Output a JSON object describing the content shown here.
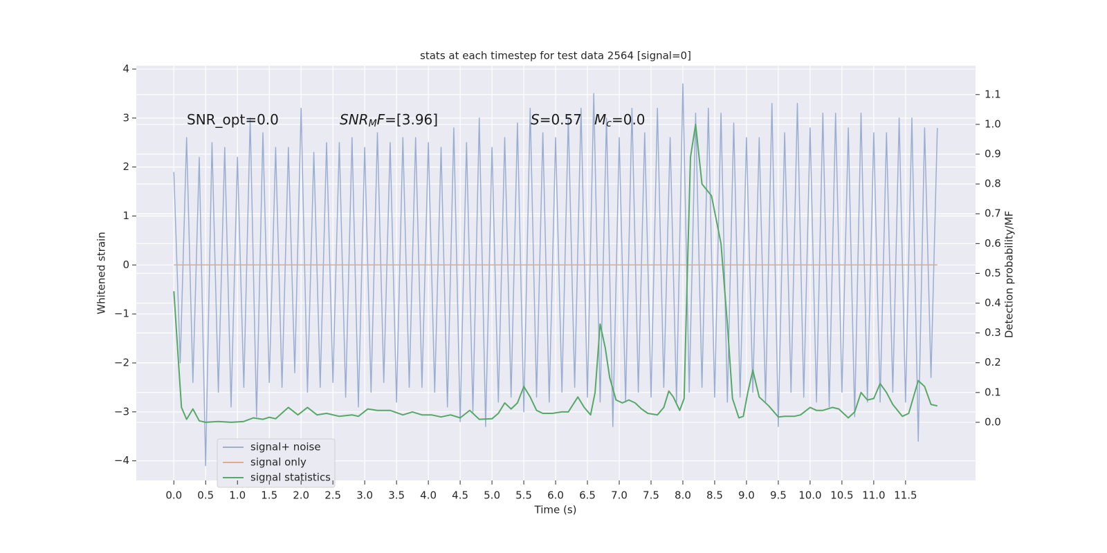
{
  "chart_data": {
    "type": "line",
    "title": "stats at each timestep for test data 2564 [signal=0]",
    "xlabel": "Time (s)",
    "ylabel": "Whitened strain",
    "y2label": "Detection probability/MF",
    "annotations": [
      [
        "SNR_opt=0.0"
      ],
      [
        "SNR",
        "M",
        "F",
        "=[3.96]"
      ],
      [
        "S",
        "=0.57"
      ],
      [
        "M",
        "c",
        "=0.0"
      ]
    ],
    "grid": true,
    "legend": "lower left",
    "xlim": [
      -0.59,
      12.6
    ],
    "xticks": [
      {
        "value": 0,
        "label": "0.0"
      },
      {
        "value": 0.5,
        "label": "0.5"
      },
      {
        "value": 1,
        "label": "1.0"
      },
      {
        "value": 1.5,
        "label": "1.5"
      },
      {
        "value": 2,
        "label": "2.0"
      },
      {
        "value": 2.5,
        "label": "2.5"
      },
      {
        "value": 3,
        "label": "3.0"
      },
      {
        "value": 3.5,
        "label": "3.5"
      },
      {
        "value": 4,
        "label": "4.0"
      },
      {
        "value": 4.5,
        "label": "4.5"
      },
      {
        "value": 5,
        "label": "5.0"
      },
      {
        "value": 5.5,
        "label": "5.5"
      },
      {
        "value": 6,
        "label": "6.0"
      },
      {
        "value": 6.5,
        "label": "6.5"
      },
      {
        "value": 7,
        "label": "7.0"
      },
      {
        "value": 7.5,
        "label": "7.5"
      },
      {
        "value": 8,
        "label": "8.0"
      },
      {
        "value": 8.5,
        "label": "8.5"
      },
      {
        "value": 9,
        "label": "9.0"
      },
      {
        "value": 9.5,
        "label": "9.5"
      },
      {
        "value": 10,
        "label": "10.0"
      },
      {
        "value": 10.5,
        "label": "10.5"
      },
      {
        "value": 11,
        "label": "11.0"
      },
      {
        "value": 11.5,
        "label": "11.5"
      }
    ],
    "ylim": [
      -4.4,
      4.07
    ],
    "yticks": [
      {
        "value": -4,
        "label": "−4"
      },
      {
        "value": -3,
        "label": "−3"
      },
      {
        "value": -2,
        "label": "−2"
      },
      {
        "value": -1,
        "label": "−1"
      },
      0,
      1,
      2,
      3,
      4
    ],
    "y2lim": [
      -0.195,
      1.197
    ],
    "y2ticks": [
      {
        "value": 0,
        "label": "0.0"
      },
      {
        "value": 0.1,
        "label": "0.1"
      },
      {
        "value": 0.2,
        "label": "0.2"
      },
      {
        "value": 0.3,
        "label": "0.3"
      },
      {
        "value": 0.4,
        "label": "0.4"
      },
      {
        "value": 0.5,
        "label": "0.5"
      },
      {
        "value": 0.6,
        "label": "0.6"
      },
      {
        "value": 0.7,
        "label": "0.7"
      },
      {
        "value": 0.8,
        "label": "0.8"
      },
      {
        "value": 0.9,
        "label": "0.9"
      },
      {
        "value": 1,
        "label": "1.0"
      },
      {
        "value": 1.1,
        "label": "1.1"
      }
    ],
    "series": [
      {
        "name": "signal+ noise",
        "color": "#9aaed2",
        "x": [
          0,
          0.1,
          0.2,
          0.3,
          0.4,
          0.5,
          0.6,
          0.7,
          0.8,
          0.9,
          1,
          1.1,
          1.2,
          1.3,
          1.4,
          1.5,
          1.6,
          1.7,
          1.8,
          1.9,
          2,
          2.1,
          2.2,
          2.3,
          2.4,
          2.5,
          2.6,
          2.7,
          2.8,
          2.9,
          3,
          3.1,
          3.2,
          3.3,
          3.4,
          3.5,
          3.6,
          3.7,
          3.8,
          3.9,
          4,
          4.1,
          4.2,
          4.3,
          4.4,
          4.5,
          4.6,
          4.7,
          4.8,
          4.9,
          5,
          5.1,
          5.2,
          5.3,
          5.4,
          5.5,
          5.6,
          5.7,
          5.8,
          5.9,
          6,
          6.1,
          6.2,
          6.3,
          6.4,
          6.5,
          6.6,
          6.7,
          6.8,
          6.9,
          7,
          7.1,
          7.2,
          7.3,
          7.4,
          7.5,
          7.6,
          7.7,
          7.8,
          7.9,
          8,
          8.1,
          8.2,
          8.3,
          8.4,
          8.5,
          8.6,
          8.7,
          8.8,
          8.9,
          9,
          9.1,
          9.2,
          9.3,
          9.4,
          9.5,
          9.6,
          9.7,
          9.8,
          9.9,
          10,
          10.1,
          10.2,
          10.3,
          10.4,
          10.5,
          10.6,
          10.7,
          10.8,
          10.9,
          11,
          11.1,
          11.2,
          11.3,
          11.4,
          11.5,
          11.6,
          11.7,
          11.8,
          11.9,
          12
        ],
        "values": [
          1.9,
          -2.0,
          2.6,
          -2.4,
          2.2,
          -4.1,
          2.5,
          -2.6,
          2.4,
          -2.9,
          2.2,
          -2.5,
          3.0,
          -3.1,
          2.7,
          -2.4,
          2.4,
          -2.5,
          2.4,
          -2.2,
          3.2,
          -2.6,
          2.3,
          -2.5,
          2.5,
          -2.4,
          2.5,
          -2.7,
          2.6,
          -2.9,
          2.4,
          -2.6,
          2.7,
          -2.4,
          2.5,
          -2.8,
          2.6,
          -2.5,
          2.6,
          -2.5,
          2.5,
          -2.6,
          2.4,
          -2.9,
          2.8,
          -3.2,
          2.5,
          -3.0,
          3.0,
          -3.3,
          2.4,
          -2.8,
          2.6,
          -2.7,
          2.9,
          -3.0,
          3.2,
          -2.7,
          2.7,
          -2.8,
          2.6,
          -2.6,
          3.0,
          -2.5,
          3.2,
          -2.7,
          3.5,
          -2.8,
          3.0,
          -3.3,
          2.6,
          -2.8,
          3.2,
          -2.6,
          2.7,
          -2.7,
          3.2,
          -2.5,
          2.6,
          -2.8,
          3.7,
          -2.6,
          3.1,
          -2.5,
          3.2,
          -2.7,
          3.1,
          -2.8,
          2.9,
          -2.7,
          2.6,
          -2.6,
          2.6,
          -2.8,
          3.3,
          -3.3,
          2.7,
          -2.6,
          3.3,
          -2.7,
          2.8,
          -2.8,
          3.1,
          -2.9,
          3.1,
          -2.6,
          2.8,
          -3.1,
          3.1,
          -2.8,
          2.7,
          -2.8,
          2.7,
          -2.6,
          3.0,
          -2.8,
          3.0,
          -3.6,
          2.8,
          -2.3,
          2.8
        ]
      },
      {
        "name": "signal only",
        "color": "#e6a88a",
        "x": [
          0,
          12
        ],
        "values": [
          0,
          0
        ]
      },
      {
        "name": "signal statistics",
        "color": "#55a868",
        "axis": "y2",
        "x": [
          0,
          0.08,
          0.12,
          0.2,
          0.3,
          0.4,
          0.5,
          0.7,
          0.9,
          1.1,
          1.25,
          1.4,
          1.5,
          1.6,
          1.8,
          1.95,
          2.1,
          2.25,
          2.4,
          2.6,
          2.8,
          2.9,
          3.05,
          3.2,
          3.4,
          3.6,
          3.75,
          3.9,
          4.05,
          4.2,
          4.35,
          4.5,
          4.65,
          4.8,
          5.0,
          5.1,
          5.2,
          5.3,
          5.4,
          5.5,
          5.6,
          5.7,
          5.8,
          5.95,
          6.1,
          6.2,
          6.35,
          6.45,
          6.55,
          6.62,
          6.7,
          6.78,
          6.85,
          6.95,
          7.05,
          7.15,
          7.25,
          7.35,
          7.45,
          7.6,
          7.7,
          7.78,
          7.85,
          7.95,
          8.02,
          8.07,
          8.12,
          8.2,
          8.3,
          8.45,
          8.6,
          8.7,
          8.78,
          8.88,
          8.95,
          9.02,
          9.1,
          9.2,
          9.35,
          9.5,
          9.6,
          9.75,
          9.85,
          10.0,
          10.1,
          10.2,
          10.35,
          10.45,
          10.6,
          10.7,
          10.8,
          10.9,
          11.0,
          11.1,
          11.2,
          11.3,
          11.45,
          11.55,
          11.7,
          11.8,
          11.9,
          12.0
        ],
        "values": [
          0.44,
          0.18,
          0.05,
          0.01,
          0.045,
          0.005,
          0.0,
          0.003,
          0.0,
          0.003,
          0.015,
          0.01,
          0.017,
          0.012,
          0.05,
          0.025,
          0.05,
          0.025,
          0.03,
          0.02,
          0.025,
          0.02,
          0.045,
          0.04,
          0.04,
          0.025,
          0.035,
          0.025,
          0.025,
          0.018,
          0.025,
          0.015,
          0.04,
          0.01,
          0.012,
          0.03,
          0.065,
          0.045,
          0.065,
          0.12,
          0.085,
          0.04,
          0.03,
          0.03,
          0.035,
          0.035,
          0.085,
          0.05,
          0.025,
          0.1,
          0.33,
          0.25,
          0.15,
          0.075,
          0.065,
          0.075,
          0.065,
          0.045,
          0.03,
          0.025,
          0.05,
          0.105,
          0.085,
          0.04,
          0.08,
          0.5,
          0.89,
          1.0,
          0.8,
          0.76,
          0.6,
          0.33,
          0.08,
          0.015,
          0.02,
          0.1,
          0.175,
          0.085,
          0.055,
          0.018,
          0.02,
          0.02,
          0.025,
          0.05,
          0.04,
          0.04,
          0.05,
          0.045,
          0.015,
          0.035,
          0.1,
          0.075,
          0.08,
          0.13,
          0.1,
          0.06,
          0.02,
          0.03,
          0.14,
          0.12,
          0.06,
          0.055
        ]
      }
    ]
  }
}
